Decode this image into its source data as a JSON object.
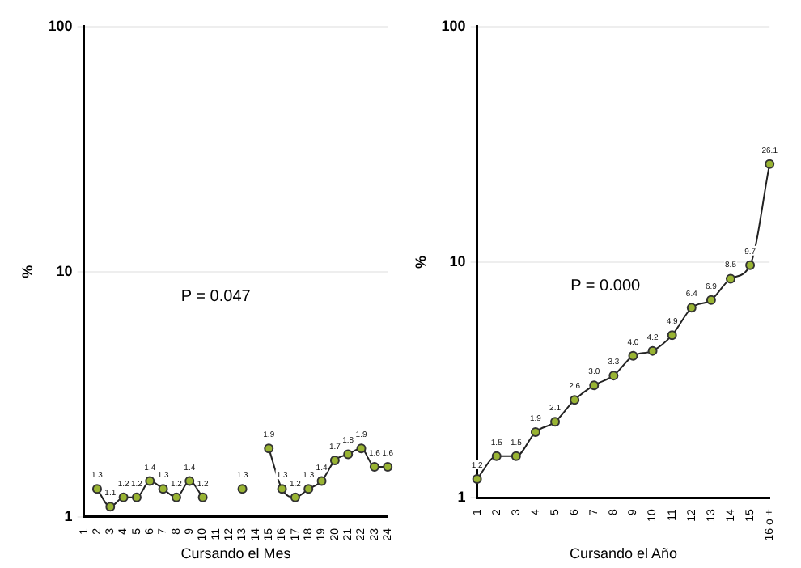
{
  "chart_data": [
    {
      "type": "line",
      "xlabel": "Cursando el Mes",
      "ylabel": "%",
      "categories": [
        "1",
        "2",
        "3",
        "4",
        "5",
        "6",
        "7",
        "8",
        "9",
        "10",
        "11",
        "12",
        "13",
        "14",
        "15",
        "16",
        "17",
        "18",
        "19",
        "20",
        "21",
        "22",
        "23",
        "24"
      ],
      "series": [
        {
          "color": "#99b433",
          "values": [
            null,
            1.3,
            1.1,
            1.2,
            1.2,
            1.4,
            1.3,
            1.2,
            1.4,
            1.2,
            null,
            null,
            1.3,
            null,
            1.9,
            1.3,
            1.2,
            1.3,
            1.4,
            1.7,
            1.8,
            1.9,
            1.6,
            1.6
          ],
          "value_labels": [
            null,
            "1.3",
            "1.1",
            "1.2",
            "1.2",
            "1.4",
            "1.3",
            "1.2",
            "1.4",
            "1.2",
            null,
            null,
            "1.3",
            null,
            "1.9",
            "1.3",
            "1.2",
            "1.3",
            "1.4",
            "1.7",
            "1.8",
            "1.9",
            "1.6",
            "1.6"
          ]
        }
      ],
      "log": true,
      "ylim": [
        1,
        100
      ],
      "yticks": [
        1,
        10,
        100
      ],
      "grid": "y",
      "marker": "circle",
      "annotations": [
        "P = 0.047"
      ]
    },
    {
      "type": "line",
      "xlabel": "Cursando el Año",
      "ylabel": "%",
      "categories": [
        "1",
        "2",
        "3",
        "4",
        "5",
        "6",
        "7",
        "8",
        "9",
        "10",
        "11",
        "12",
        "13",
        "14",
        "15",
        "16 o +"
      ],
      "series": [
        {
          "color": "#99b433",
          "values": [
            1.2,
            1.5,
            1.5,
            1.9,
            2.1,
            2.6,
            3.0,
            3.3,
            4.0,
            4.2,
            4.9,
            6.4,
            6.9,
            8.5,
            9.7,
            26.1
          ],
          "value_labels": [
            "1.2",
            "1.5",
            "1.5",
            "1.9",
            "2.1",
            "2.6",
            "3.0",
            "3.3",
            "4.0",
            "4.2",
            "4.9",
            "6.4",
            "6.9",
            "8.5",
            "9.7",
            "26.1"
          ]
        }
      ],
      "log": true,
      "ylim": [
        1,
        100
      ],
      "yticks": [
        1,
        10,
        100
      ],
      "grid": "y",
      "marker": "circle",
      "annotations": [
        "P = 0.000"
      ]
    }
  ]
}
